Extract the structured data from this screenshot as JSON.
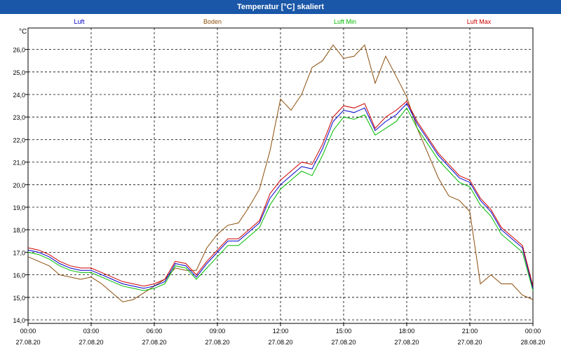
{
  "window": {
    "title": "Temperatur [°C] skaliert"
  },
  "chart_data": {
    "type": "line",
    "title": "Temperatur [°C] skaliert",
    "ylabel": "°C",
    "xlabel": "",
    "ylim": [
      14.0,
      26.5
    ],
    "yticks": [
      "14,0",
      "15,0",
      "16,0",
      "17,0",
      "18,0",
      "19,0",
      "20,0",
      "21,0",
      "22,0",
      "23,0",
      "24,0",
      "25,0",
      "26,0"
    ],
    "xlim": [
      0,
      24
    ],
    "xticks": [
      {
        "time": "00:00",
        "date": "27.08.20",
        "hour": 0
      },
      {
        "time": "03:00",
        "date": "27.08.20",
        "hour": 3
      },
      {
        "time": "06:00",
        "date": "27.08.20",
        "hour": 6
      },
      {
        "time": "09:00",
        "date": "27.08.20",
        "hour": 9
      },
      {
        "time": "12:00",
        "date": "27.08.20",
        "hour": 12
      },
      {
        "time": "15:00",
        "date": "27.08.20",
        "hour": 15
      },
      {
        "time": "18:00",
        "date": "27.08.20",
        "hour": 18
      },
      {
        "time": "21:00",
        "date": "27.08.20",
        "hour": 21
      },
      {
        "time": "00:00",
        "date": "28.08.20",
        "hour": 24
      }
    ],
    "grid": true,
    "series": [
      {
        "name": "Luft",
        "color": "#0000cc",
        "x": [
          0,
          0.5,
          1,
          1.5,
          2,
          2.5,
          3,
          3.5,
          4,
          4.5,
          5,
          5.5,
          6,
          6.5,
          7,
          7.5,
          8,
          8.5,
          9,
          9.5,
          10,
          10.5,
          11,
          11.5,
          12,
          12.5,
          13,
          13.5,
          14,
          14.5,
          15,
          15.5,
          16,
          16.5,
          17,
          17.5,
          18,
          18.5,
          19,
          19.5,
          20,
          20.5,
          21,
          21.5,
          22,
          22.5,
          23,
          23.5,
          24
        ],
        "values": [
          17.1,
          17.0,
          16.8,
          16.5,
          16.3,
          16.2,
          16.2,
          16.0,
          15.8,
          15.6,
          15.5,
          15.4,
          15.5,
          15.7,
          16.5,
          16.4,
          15.9,
          16.5,
          17.0,
          17.5,
          17.5,
          17.9,
          18.3,
          19.4,
          20.0,
          20.4,
          20.8,
          20.7,
          21.6,
          22.8,
          23.3,
          23.2,
          23.4,
          22.4,
          22.8,
          23.1,
          23.6,
          22.7,
          22.0,
          21.3,
          20.8,
          20.3,
          20.1,
          19.3,
          18.8,
          18.0,
          17.6,
          17.2,
          15.4
        ]
      },
      {
        "name": "Boden",
        "color": "#8b4d0a",
        "x": [
          0,
          0.5,
          1,
          1.5,
          2,
          2.5,
          3,
          3.5,
          4,
          4.5,
          5,
          5.5,
          6,
          6.5,
          7,
          7.5,
          8,
          8.5,
          9,
          9.5,
          10,
          10.5,
          11,
          11.5,
          12,
          12.5,
          13,
          13.5,
          14,
          14.5,
          15,
          15.5,
          16,
          16.5,
          17,
          17.5,
          18,
          18.5,
          19,
          19.5,
          20,
          20.5,
          21,
          21.5,
          22,
          22.5,
          23,
          23.5,
          24
        ],
        "values": [
          16.8,
          16.6,
          16.4,
          16.0,
          15.9,
          15.8,
          15.9,
          15.6,
          15.2,
          14.8,
          14.9,
          15.2,
          15.5,
          15.8,
          16.3,
          16.2,
          16.2,
          17.2,
          17.8,
          18.2,
          18.3,
          19.0,
          19.8,
          21.5,
          23.8,
          23.3,
          24.0,
          25.2,
          25.5,
          26.2,
          25.6,
          25.7,
          26.2,
          24.5,
          25.7,
          24.8,
          23.9,
          22.5,
          21.4,
          20.3,
          19.5,
          19.3,
          18.8,
          15.6,
          16.0,
          15.6,
          15.6,
          15.1,
          14.9
        ]
      },
      {
        "name": "Luft Min",
        "color": "#00bb00",
        "x": [
          0,
          0.5,
          1,
          1.5,
          2,
          2.5,
          3,
          3.5,
          4,
          4.5,
          5,
          5.5,
          6,
          6.5,
          7,
          7.5,
          8,
          8.5,
          9,
          9.5,
          10,
          10.5,
          11,
          11.5,
          12,
          12.5,
          13,
          13.5,
          14,
          14.5,
          15,
          15.5,
          16,
          16.5,
          17,
          17.5,
          18,
          18.5,
          19,
          19.5,
          20,
          20.5,
          21,
          21.5,
          22,
          22.5,
          23,
          23.5,
          24
        ],
        "values": [
          17.0,
          16.9,
          16.7,
          16.4,
          16.2,
          16.1,
          16.1,
          15.9,
          15.7,
          15.5,
          15.4,
          15.3,
          15.4,
          15.6,
          16.4,
          16.3,
          15.8,
          16.3,
          16.8,
          17.3,
          17.3,
          17.7,
          18.1,
          19.1,
          19.8,
          20.2,
          20.6,
          20.4,
          21.3,
          22.4,
          23.0,
          22.9,
          23.1,
          22.2,
          22.5,
          22.8,
          23.4,
          22.5,
          21.8,
          21.1,
          20.6,
          20.1,
          19.9,
          19.1,
          18.6,
          17.8,
          17.4,
          17.0,
          15.3
        ]
      },
      {
        "name": "Luft Max",
        "color": "#cc0000",
        "x": [
          0,
          0.5,
          1,
          1.5,
          2,
          2.5,
          3,
          3.5,
          4,
          4.5,
          5,
          5.5,
          6,
          6.5,
          7,
          7.5,
          8,
          8.5,
          9,
          9.5,
          10,
          10.5,
          11,
          11.5,
          12,
          12.5,
          13,
          13.5,
          14,
          14.5,
          15,
          15.5,
          16,
          16.5,
          17,
          17.5,
          18,
          18.5,
          19,
          19.5,
          20,
          20.5,
          21,
          21.5,
          22,
          22.5,
          23,
          23.5,
          24
        ],
        "values": [
          17.2,
          17.1,
          16.9,
          16.6,
          16.4,
          16.3,
          16.3,
          16.1,
          15.9,
          15.7,
          15.6,
          15.5,
          15.6,
          15.8,
          16.6,
          16.5,
          16.0,
          16.6,
          17.1,
          17.6,
          17.6,
          18.0,
          18.4,
          19.6,
          20.2,
          20.6,
          21.0,
          20.9,
          21.8,
          23.0,
          23.5,
          23.4,
          23.6,
          22.5,
          23.0,
          23.3,
          23.7,
          22.8,
          22.1,
          21.4,
          20.9,
          20.4,
          20.2,
          19.4,
          18.9,
          18.1,
          17.7,
          17.3,
          15.5
        ]
      }
    ]
  }
}
